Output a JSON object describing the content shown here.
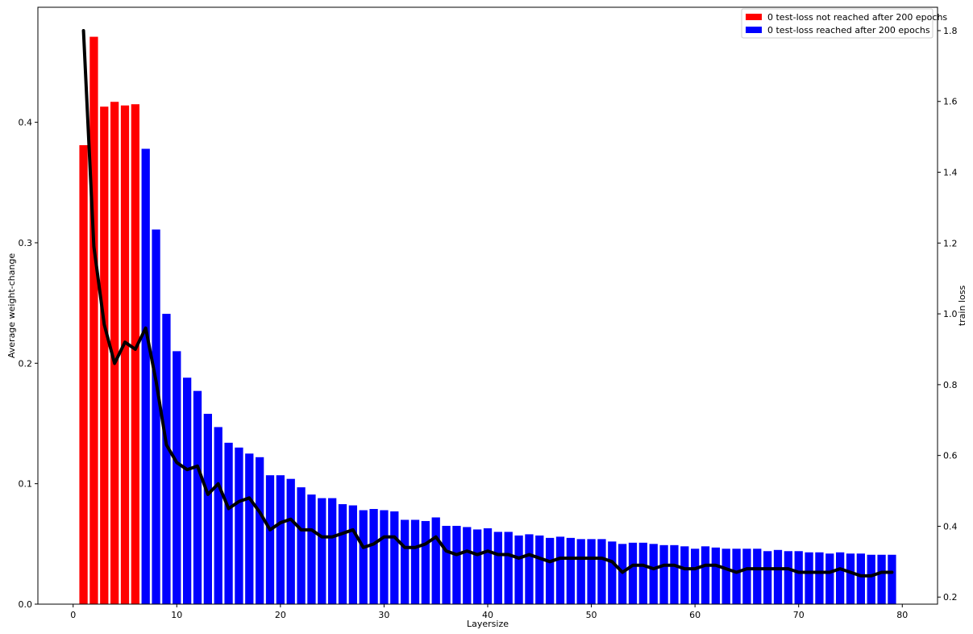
{
  "chart_data": {
    "type": "bar",
    "xlabel": "Layersize",
    "ylabel": "Average weight-change",
    "y2label": "train loss",
    "xlim": [
      -3.4,
      83.4
    ],
    "ylim": [
      0,
      0.4955
    ],
    "y2lim": [
      0.18,
      1.866
    ],
    "xticks": [
      0,
      10,
      20,
      30,
      40,
      50,
      60,
      70,
      80
    ],
    "yticks": [
      0.0,
      0.1,
      0.2,
      0.3,
      0.4
    ],
    "ytick_labels": [
      "0.0",
      "0.1",
      "0.2",
      "0.3",
      "0.4"
    ],
    "y2ticks": [
      0.2,
      0.4,
      0.6,
      0.8,
      1.0,
      1.2,
      1.4,
      1.6,
      1.8
    ],
    "y2tick_labels": [
      "0.2",
      "0.4",
      "0.6",
      "0.8",
      "1.0",
      "1.2",
      "1.4",
      "1.6",
      "1.8"
    ],
    "grid": false,
    "legend_position": "top-right",
    "colors": {
      "not_reached": "#ff0000",
      "reached": "#0000ff",
      "line": "#000000"
    },
    "legend": [
      {
        "label": "0 test-loss not reached after 200 epochs",
        "color": "#ff0000"
      },
      {
        "label": "0 test-loss reached after 200 epochs",
        "color": "#0000ff"
      }
    ],
    "x": [
      1,
      2,
      3,
      4,
      5,
      6,
      7,
      8,
      9,
      10,
      11,
      12,
      13,
      14,
      15,
      16,
      17,
      18,
      19,
      20,
      21,
      22,
      23,
      24,
      25,
      26,
      27,
      28,
      29,
      30,
      31,
      32,
      33,
      34,
      35,
      36,
      37,
      38,
      39,
      40,
      41,
      42,
      43,
      44,
      45,
      46,
      47,
      48,
      49,
      50,
      51,
      52,
      53,
      54,
      55,
      56,
      57,
      58,
      59,
      60,
      61,
      62,
      63,
      64,
      65,
      66,
      67,
      68,
      69,
      70,
      71,
      72,
      73,
      74,
      75,
      76,
      77,
      78,
      79
    ],
    "values": [
      0.381,
      0.471,
      0.413,
      0.417,
      0.414,
      0.415,
      0.378,
      0.311,
      0.241,
      0.21,
      0.188,
      0.177,
      0.158,
      0.147,
      0.134,
      0.13,
      0.125,
      0.122,
      0.107,
      0.107,
      0.104,
      0.097,
      0.091,
      0.088,
      0.088,
      0.083,
      0.082,
      0.078,
      0.079,
      0.078,
      0.077,
      0.07,
      0.07,
      0.069,
      0.072,
      0.065,
      0.065,
      0.064,
      0.062,
      0.063,
      0.06,
      0.06,
      0.057,
      0.058,
      0.057,
      0.055,
      0.056,
      0.055,
      0.054,
      0.054,
      0.054,
      0.052,
      0.05,
      0.051,
      0.051,
      0.05,
      0.049,
      0.049,
      0.048,
      0.046,
      0.048,
      0.047,
      0.046,
      0.046,
      0.046,
      0.046,
      0.044,
      0.045,
      0.044,
      0.044,
      0.043,
      0.043,
      0.042,
      0.043,
      0.042,
      0.042,
      0.041,
      0.041,
      0.041
    ],
    "bar_group": [
      "not_reached",
      "not_reached",
      "not_reached",
      "not_reached",
      "not_reached",
      "not_reached",
      "reached",
      "reached",
      "reached",
      "reached",
      "reached",
      "reached",
      "reached",
      "reached",
      "reached",
      "reached",
      "reached",
      "reached",
      "reached",
      "reached",
      "reached",
      "reached",
      "reached",
      "reached",
      "reached",
      "reached",
      "reached",
      "reached",
      "reached",
      "reached",
      "reached",
      "reached",
      "reached",
      "reached",
      "reached",
      "reached",
      "reached",
      "reached",
      "reached",
      "reached",
      "reached",
      "reached",
      "reached",
      "reached",
      "reached",
      "reached",
      "reached",
      "reached",
      "reached",
      "reached",
      "reached",
      "reached",
      "reached",
      "reached",
      "reached",
      "reached",
      "reached",
      "reached",
      "reached",
      "reached",
      "reached",
      "reached",
      "reached",
      "reached",
      "reached",
      "reached",
      "reached",
      "reached",
      "reached",
      "reached",
      "reached",
      "reached",
      "reached",
      "reached",
      "reached",
      "reached",
      "reached",
      "reached",
      "reached"
    ],
    "train_loss": [
      1.8,
      1.19,
      0.97,
      0.86,
      0.92,
      0.9,
      0.96,
      0.81,
      0.63,
      0.58,
      0.56,
      0.57,
      0.49,
      0.52,
      0.45,
      0.47,
      0.48,
      0.44,
      0.39,
      0.41,
      0.42,
      0.39,
      0.39,
      0.37,
      0.37,
      0.38,
      0.39,
      0.34,
      0.35,
      0.37,
      0.37,
      0.34,
      0.34,
      0.35,
      0.37,
      0.33,
      0.32,
      0.33,
      0.32,
      0.33,
      0.32,
      0.32,
      0.31,
      0.32,
      0.31,
      0.3,
      0.31,
      0.31,
      0.31,
      0.31,
      0.31,
      0.3,
      0.27,
      0.29,
      0.29,
      0.28,
      0.29,
      0.29,
      0.28,
      0.28,
      0.29,
      0.29,
      0.28,
      0.27,
      0.28,
      0.28,
      0.28,
      0.28,
      0.28,
      0.27,
      0.27,
      0.27,
      0.27,
      0.28,
      0.27,
      0.26,
      0.26,
      0.27,
      0.27
    ]
  }
}
